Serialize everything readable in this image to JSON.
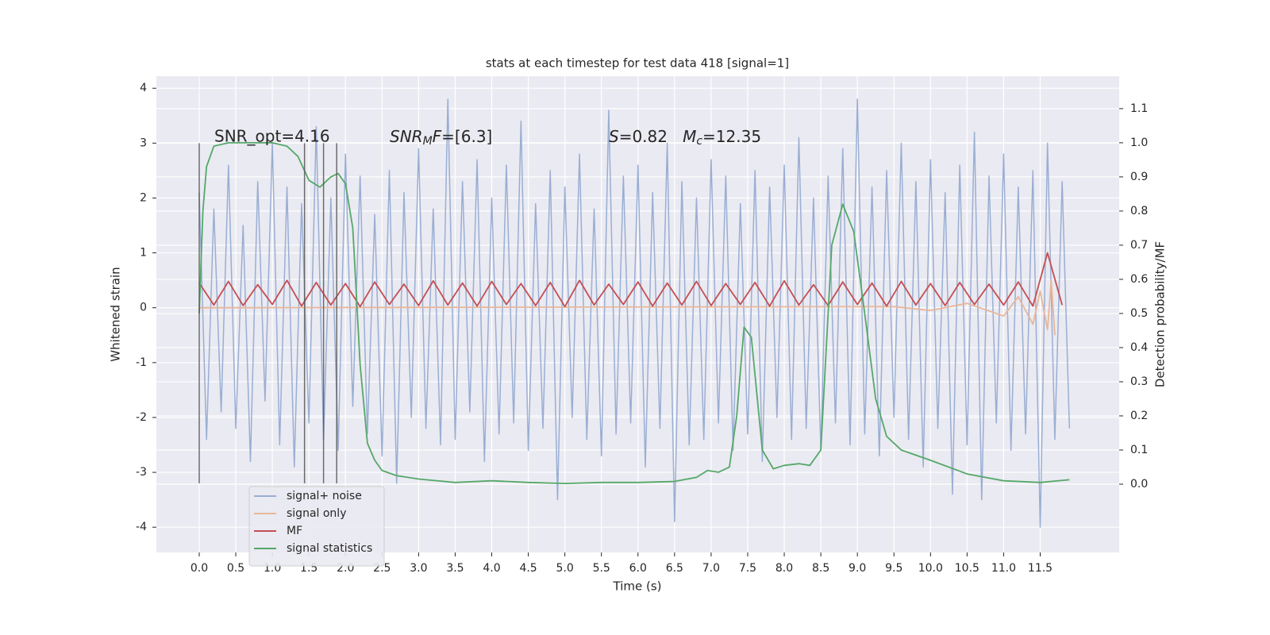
{
  "chart_data": {
    "type": "line",
    "title": "stats at each timestep for test data 418 [signal=1]",
    "xlabel": "Time (s)",
    "ylabel": "Whitened strain",
    "y2label": "Detection probability/MF",
    "annotations": {
      "snr_opt": "SNR_opt=4.16",
      "snr_mf": [
        "SNR",
        "M",
        "F",
        "=[6.3]"
      ],
      "s_mc": [
        "S",
        "=0.82   ",
        "M",
        "c",
        "=12.35"
      ]
    },
    "xlim": [
      -0.586,
      12.58
    ],
    "ylim": [
      -4.46,
      4.22
    ],
    "y2lim": [
      -0.2,
      1.195
    ],
    "xticks": [
      {
        "value": 0,
        "label": "0.0"
      },
      0.5,
      {
        "value": 1,
        "label": "1.0"
      },
      1.5,
      {
        "value": 2,
        "label": "2.0"
      },
      2.5,
      {
        "value": 3,
        "label": "3.0"
      },
      3.5,
      {
        "value": 4,
        "label": "4.0"
      },
      4.5,
      {
        "value": 5,
        "label": "5.0"
      },
      5.5,
      {
        "value": 6,
        "label": "6.0"
      },
      6.5,
      {
        "value": 7,
        "label": "7.0"
      },
      7.5,
      {
        "value": 8,
        "label": "8.0"
      },
      8.5,
      {
        "value": 9,
        "label": "9.0"
      },
      9.5,
      {
        "value": 10,
        "label": "10.0"
      },
      10.5,
      {
        "value": 11,
        "label": "11.0"
      },
      11.5
    ],
    "yticks": [
      -4,
      -3,
      -2,
      -1,
      0,
      1,
      2,
      3,
      4
    ],
    "y2ticks": [
      {
        "value": 0,
        "label": "0.0"
      },
      0.1,
      0.2,
      0.3,
      0.4,
      0.5,
      0.6,
      0.7,
      0.8,
      0.9,
      {
        "value": 1,
        "label": "1.0"
      },
      1.1
    ],
    "grid": true,
    "legend": "lower left",
    "vlines": {
      "x": [
        0,
        1.44,
        1.7,
        1.88
      ],
      "ymin": -3.2,
      "ymax": 3.0,
      "color": "#555555"
    },
    "series": [
      {
        "name": "signal+ noise",
        "color": "#9aaed3",
        "x": [
          0,
          0.1,
          0.2,
          0.3,
          0.4,
          0.5,
          0.6,
          0.7,
          0.8,
          0.9,
          1,
          1.1,
          1.2,
          1.3,
          1.4,
          1.5,
          1.6,
          1.7,
          1.8,
          1.9,
          2,
          2.1,
          2.2,
          2.3,
          2.4,
          2.5,
          2.6,
          2.7,
          2.8,
          2.9,
          3,
          3.1,
          3.2,
          3.3,
          3.4,
          3.5,
          3.6,
          3.7,
          3.8,
          3.9,
          4,
          4.1,
          4.2,
          4.3,
          4.4,
          4.5,
          4.6,
          4.7,
          4.8,
          4.9,
          5,
          5.1,
          5.2,
          5.3,
          5.4,
          5.5,
          5.6,
          5.7,
          5.8,
          5.9,
          6,
          6.1,
          6.2,
          6.3,
          6.4,
          6.5,
          6.6,
          6.7,
          6.8,
          6.9,
          7,
          7.1,
          7.2,
          7.3,
          7.4,
          7.5,
          7.6,
          7.7,
          7.8,
          7.9,
          8,
          8.1,
          8.2,
          8.3,
          8.4,
          8.5,
          8.6,
          8.7,
          8.8,
          8.9,
          9,
          9.1,
          9.2,
          9.3,
          9.4,
          9.5,
          9.6,
          9.7,
          9.8,
          9.9,
          10,
          10.1,
          10.2,
          10.3,
          10.4,
          10.5,
          10.6,
          10.7,
          10.8,
          10.9,
          11,
          11.1,
          11.2,
          11.3,
          11.4,
          11.5,
          11.6,
          11.7,
          11.8,
          11.9
        ],
        "values": [
          2.1,
          -2.4,
          1.8,
          -1.9,
          2.6,
          -2.2,
          1.5,
          -2.8,
          2.3,
          -1.7,
          3.0,
          -2.5,
          2.2,
          -2.9,
          1.9,
          -2.1,
          3.3,
          -2.4,
          2.0,
          -2.6,
          2.8,
          -1.8,
          2.4,
          -2.3,
          1.7,
          -2.7,
          2.5,
          -3.2,
          2.1,
          -2.0,
          2.9,
          -2.2,
          1.8,
          -2.5,
          3.8,
          -2.4,
          2.3,
          -1.9,
          2.7,
          -2.8,
          2.0,
          -2.3,
          2.6,
          -2.1,
          3.4,
          -2.6,
          1.9,
          -2.2,
          2.5,
          -3.5,
          2.2,
          -2.0,
          2.8,
          -2.4,
          1.8,
          -2.7,
          3.6,
          -2.3,
          2.4,
          -2.1,
          2.6,
          -2.9,
          2.1,
          -2.2,
          3.0,
          -3.9,
          2.3,
          -2.5,
          2.0,
          -2.4,
          2.7,
          -2.1,
          2.4,
          -2.6,
          1.9,
          -2.3,
          2.5,
          -2.8,
          2.2,
          -2.0,
          2.6,
          -2.4,
          3.1,
          -2.2,
          2.0,
          -2.6,
          2.4,
          -2.1,
          2.9,
          -2.5,
          3.8,
          -2.3,
          2.2,
          -2.7,
          2.5,
          -2.0,
          3.0,
          -2.4,
          2.3,
          -2.9,
          2.7,
          -2.2,
          2.1,
          -3.4,
          2.6,
          -2.5,
          3.2,
          -3.5,
          2.4,
          -2.1,
          2.8,
          -2.6,
          2.2,
          -2.3,
          2.5,
          -4.0,
          3.0,
          -2.4,
          2.3,
          -2.2
        ]
      },
      {
        "name": "signal only",
        "color": "#e8b69a",
        "x": [
          0,
          9.5,
          10,
          10.5,
          11,
          11.2,
          11.4,
          11.5,
          11.6,
          11.65,
          11.7
        ],
        "values": [
          0,
          0.02,
          -0.05,
          0.08,
          -0.15,
          0.2,
          -0.3,
          0.3,
          -0.4,
          0.5,
          -0.5
        ]
      },
      {
        "name": "MF",
        "color": "#c44e52",
        "x": [
          0,
          0.2,
          0.4,
          0.6,
          0.8,
          1,
          1.2,
          1.4,
          1.6,
          1.8,
          2,
          2.2,
          2.4,
          2.6,
          2.8,
          3,
          3.2,
          3.4,
          3.6,
          3.8,
          4,
          4.2,
          4.4,
          4.6,
          4.8,
          5,
          5.2,
          5.4,
          5.6,
          5.8,
          6,
          6.2,
          6.4,
          6.6,
          6.8,
          7,
          7.2,
          7.4,
          7.6,
          7.8,
          8,
          8.2,
          8.4,
          8.6,
          8.8,
          9,
          9.2,
          9.4,
          9.6,
          9.8,
          10,
          10.2,
          10.4,
          10.6,
          10.8,
          11,
          11.2,
          11.4,
          11.6,
          11.8
        ],
        "values": [
          0.45,
          0.05,
          0.48,
          0.04,
          0.42,
          0.06,
          0.5,
          0.03,
          0.46,
          0.05,
          0.44,
          0.02,
          0.47,
          0.06,
          0.43,
          0.04,
          0.49,
          0.05,
          0.45,
          0.03,
          0.48,
          0.06,
          0.44,
          0.04,
          0.46,
          0.02,
          0.5,
          0.05,
          0.43,
          0.06,
          0.47,
          0.03,
          0.45,
          0.05,
          0.48,
          0.04,
          0.44,
          0.06,
          0.46,
          0.03,
          0.49,
          0.05,
          0.42,
          0.04,
          0.47,
          0.06,
          0.45,
          0.03,
          0.48,
          0.05,
          0.44,
          0.04,
          0.46,
          0.06,
          0.43,
          0.05,
          0.47,
          0.03,
          1.0,
          0.05
        ]
      },
      {
        "name": "signal statistics",
        "color": "#55a868",
        "axis": "y2",
        "x": [
          0,
          0.05,
          0.1,
          0.2,
          0.4,
          1.0,
          1.2,
          1.35,
          1.5,
          1.65,
          1.8,
          1.9,
          2.0,
          2.1,
          2.2,
          2.3,
          2.4,
          2.5,
          2.7,
          3.0,
          3.5,
          4.0,
          4.5,
          5.0,
          5.5,
          6.0,
          6.5,
          6.8,
          6.95,
          7.1,
          7.25,
          7.35,
          7.45,
          7.55,
          7.7,
          7.85,
          8.0,
          8.2,
          8.35,
          8.5,
          8.65,
          8.8,
          8.95,
          9.1,
          9.25,
          9.4,
          9.6,
          10.0,
          10.5,
          11.0,
          11.5,
          11.9
        ],
        "values": [
          0.5,
          0.8,
          0.93,
          0.99,
          1.0,
          1.0,
          0.99,
          0.96,
          0.89,
          0.87,
          0.9,
          0.91,
          0.88,
          0.75,
          0.35,
          0.12,
          0.07,
          0.04,
          0.025,
          0.015,
          0.005,
          0.01,
          0.005,
          0.002,
          0.005,
          0.005,
          0.008,
          0.02,
          0.04,
          0.035,
          0.05,
          0.2,
          0.46,
          0.43,
          0.1,
          0.045,
          0.055,
          0.06,
          0.055,
          0.1,
          0.7,
          0.82,
          0.74,
          0.5,
          0.25,
          0.14,
          0.1,
          0.07,
          0.03,
          0.01,
          0.005,
          0.013
        ]
      }
    ]
  }
}
